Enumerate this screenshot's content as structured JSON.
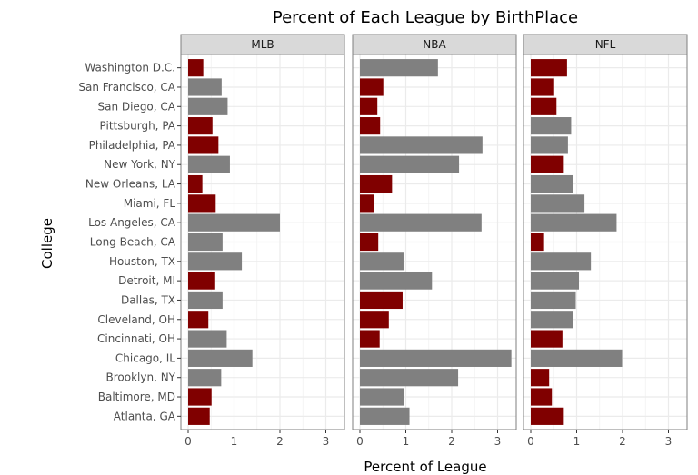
{
  "chart_data": {
    "type": "bar",
    "orientation": "horizontal",
    "title": "Percent of Each League by BirthPlace",
    "xlabel": "Percent of League",
    "ylabel": "College",
    "xlim": [
      0,
      3.35
    ],
    "xticks": [
      0,
      1,
      2,
      3
    ],
    "grid": true,
    "colors": {
      "highlight": "#800000",
      "normal": "#808080"
    },
    "categories": [
      "Washington D.C.",
      "San Francisco, CA",
      "San Diego, CA",
      "Pittsburgh, PA",
      "Philadelphia, PA",
      "New York, NY",
      "New Orleans, LA",
      "Miami, FL",
      "Los Angeles, CA",
      "Long Beach, CA",
      "Houston, TX",
      "Detroit, MI",
      "Dallas, TX",
      "Cleveland, OH",
      "Cincinnati, OH",
      "Chicago, IL",
      "Brooklyn, NY",
      "Baltimore, MD",
      "Atlanta, GA"
    ],
    "panels": [
      {
        "name": "MLB",
        "values": [
          0.33,
          0.73,
          0.86,
          0.53,
          0.66,
          0.91,
          0.31,
          0.6,
          2.0,
          0.75,
          1.17,
          0.59,
          0.75,
          0.44,
          0.84,
          1.4,
          0.72,
          0.51,
          0.47
        ],
        "highlight": [
          true,
          false,
          false,
          true,
          true,
          false,
          true,
          true,
          false,
          false,
          false,
          true,
          false,
          true,
          false,
          false,
          false,
          true,
          true
        ]
      },
      {
        "name": "NBA",
        "values": [
          1.7,
          0.51,
          0.38,
          0.44,
          2.67,
          2.16,
          0.7,
          0.31,
          2.65,
          0.4,
          0.95,
          1.57,
          0.93,
          0.63,
          0.43,
          3.3,
          2.14,
          0.97,
          1.08
        ],
        "highlight": [
          false,
          true,
          true,
          true,
          false,
          false,
          true,
          true,
          false,
          true,
          false,
          false,
          true,
          true,
          true,
          false,
          false,
          false,
          false
        ]
      },
      {
        "name": "NFL",
        "values": [
          0.79,
          0.51,
          0.56,
          0.88,
          0.81,
          0.72,
          0.92,
          1.17,
          1.87,
          0.29,
          1.31,
          1.05,
          0.98,
          0.92,
          0.69,
          1.99,
          0.4,
          0.46,
          0.72
        ],
        "highlight": [
          true,
          true,
          true,
          false,
          false,
          true,
          false,
          false,
          false,
          true,
          false,
          false,
          false,
          false,
          true,
          false,
          true,
          true,
          true
        ]
      }
    ]
  }
}
